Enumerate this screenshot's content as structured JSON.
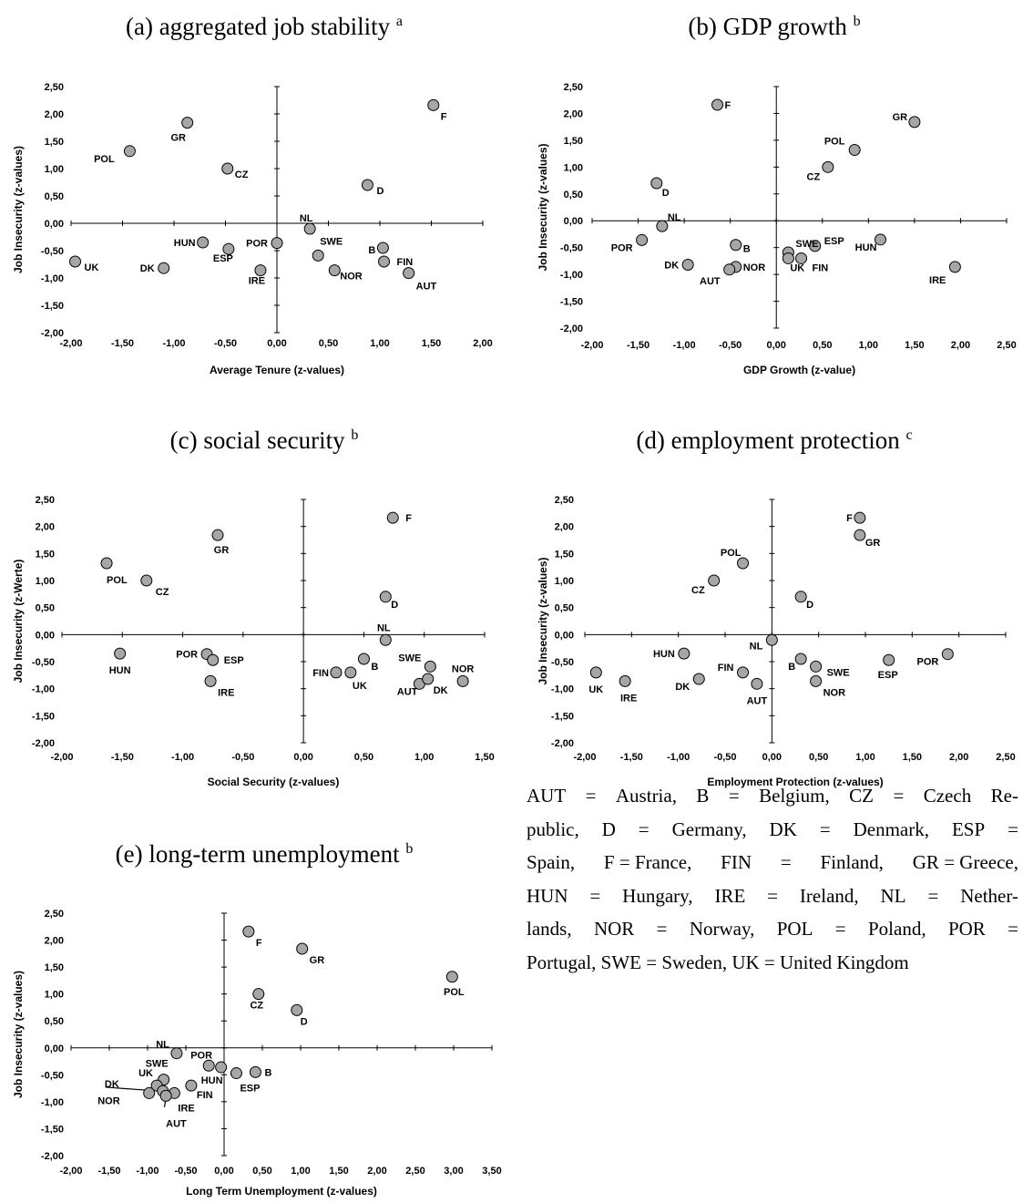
{
  "chart_data": [
    {
      "id": "a",
      "type": "scatter",
      "title": "(a) aggregated job stability",
      "title_sup": "a",
      "xlabel": "Average Tenure (z-values)",
      "ylabel": "Job Insecurity (z-values)",
      "xlim": [
        -2.0,
        2.0
      ],
      "ylim": [
        -2.0,
        2.5
      ],
      "xticks": [
        "-2,00",
        "-1,50",
        "-1,00",
        "-0,50",
        "0,00",
        "0,50",
        "1,00",
        "1,50",
        "2,00"
      ],
      "yticks": [
        "2,50",
        "2,00",
        "1,50",
        "1,00",
        "0,50",
        "0,00",
        "-0,50",
        "-1,00",
        "-1,50",
        "-2,00"
      ],
      "points": [
        {
          "label": "F",
          "x": 1.52,
          "y": 2.16
        },
        {
          "label": "GR",
          "x": -0.87,
          "y": 1.84
        },
        {
          "label": "POL",
          "x": -1.43,
          "y": 1.32
        },
        {
          "label": "CZ",
          "x": -0.48,
          "y": 1.0
        },
        {
          "label": "D",
          "x": 0.88,
          "y": 0.7
        },
        {
          "label": "NL",
          "x": 0.32,
          "y": -0.1
        },
        {
          "label": "HUN",
          "x": -0.72,
          "y": -0.35
        },
        {
          "label": "POR",
          "x": 0.0,
          "y": -0.36
        },
        {
          "label": "ESP",
          "x": -0.47,
          "y": -0.47
        },
        {
          "label": "B",
          "x": 1.03,
          "y": -0.45
        },
        {
          "label": "SWE",
          "x": 0.4,
          "y": -0.59
        },
        {
          "label": "UK",
          "x": -1.96,
          "y": -0.7
        },
        {
          "label": "FIN",
          "x": 1.04,
          "y": -0.7
        },
        {
          "label": "DK",
          "x": -1.1,
          "y": -0.82
        },
        {
          "label": "IRE",
          "x": -0.16,
          "y": -0.86
        },
        {
          "label": "NOR",
          "x": 0.56,
          "y": -0.86
        },
        {
          "label": "AUT",
          "x": 1.28,
          "y": -0.91
        }
      ]
    },
    {
      "id": "b",
      "type": "scatter",
      "title": "(b) GDP growth",
      "title_sup": "b",
      "xlabel": "GDP Growth (z-value)",
      "ylabel": "Job Insecurity (z-values)",
      "xlim": [
        -2.0,
        2.5
      ],
      "ylim": [
        -2.0,
        2.5
      ],
      "xticks": [
        "-2,00",
        "-1,50",
        "-1,00",
        "-0,50",
        "0,00",
        "0,50",
        "1,00",
        "1,50",
        "2,00",
        "2,50"
      ],
      "yticks": [
        "2,50",
        "2,00",
        "1,50",
        "1,00",
        "0,50",
        "0,00",
        "-0,50",
        "-1,00",
        "-1,50",
        "-2,00"
      ],
      "points": [
        {
          "label": "F",
          "x": -0.64,
          "y": 2.16
        },
        {
          "label": "GR",
          "x": 1.5,
          "y": 1.84
        },
        {
          "label": "POL",
          "x": 0.85,
          "y": 1.32
        },
        {
          "label": "CZ",
          "x": 0.56,
          "y": 1.0
        },
        {
          "label": "D",
          "x": -1.3,
          "y": 0.7
        },
        {
          "label": "NL",
          "x": -1.24,
          "y": -0.1
        },
        {
          "label": "POR",
          "x": -1.46,
          "y": -0.36
        },
        {
          "label": "B",
          "x": -0.44,
          "y": -0.45
        },
        {
          "label": "HUN",
          "x": 1.13,
          "y": -0.35
        },
        {
          "label": "ESP",
          "x": 0.42,
          "y": -0.47
        },
        {
          "label": "SWE",
          "x": 0.13,
          "y": -0.59
        },
        {
          "label": "FIN",
          "x": 0.27,
          "y": -0.7
        },
        {
          "label": "UK",
          "x": 0.13,
          "y": -0.7
        },
        {
          "label": "DK",
          "x": -0.96,
          "y": -0.82
        },
        {
          "label": "NOR",
          "x": -0.44,
          "y": -0.86
        },
        {
          "label": "AUT",
          "x": -0.51,
          "y": -0.91
        },
        {
          "label": "IRE",
          "x": 1.94,
          "y": -0.86
        }
      ]
    },
    {
      "id": "c",
      "type": "scatter",
      "title": "(c) social security",
      "title_sup": "b",
      "xlabel": "Social Security (z-values)",
      "ylabel": "Job Insecurity (z-Werte)",
      "xlim": [
        -2.0,
        1.5
      ],
      "ylim": [
        -2.0,
        2.5
      ],
      "xticks": [
        "-2,00",
        "-1,50",
        "-1,00",
        "-0,50",
        "0,00",
        "0,50",
        "1,00",
        "1,50"
      ],
      "yticks": [
        "2,50",
        "2,00",
        "1,50",
        "1,00",
        "0,50",
        "0,00",
        "-0,50",
        "-1,00",
        "-1,50",
        "-2,00"
      ],
      "points": [
        {
          "label": "F",
          "x": 0.74,
          "y": 2.16
        },
        {
          "label": "GR",
          "x": -0.71,
          "y": 1.84
        },
        {
          "label": "POL",
          "x": -1.63,
          "y": 1.32
        },
        {
          "label": "CZ",
          "x": -1.3,
          "y": 1.0
        },
        {
          "label": "D",
          "x": 0.68,
          "y": 0.7
        },
        {
          "label": "NL",
          "x": 0.68,
          "y": -0.1
        },
        {
          "label": "HUN",
          "x": -1.52,
          "y": -0.35
        },
        {
          "label": "POR",
          "x": -0.8,
          "y": -0.36
        },
        {
          "label": "ESP",
          "x": -0.75,
          "y": -0.47
        },
        {
          "label": "B",
          "x": 0.5,
          "y": -0.45
        },
        {
          "label": "SWE",
          "x": 1.05,
          "y": -0.59
        },
        {
          "label": "FIN",
          "x": 0.27,
          "y": -0.7
        },
        {
          "label": "UK",
          "x": 0.39,
          "y": -0.7
        },
        {
          "label": "NOR",
          "x": 1.32,
          "y": -0.86
        },
        {
          "label": "IRE",
          "x": -0.77,
          "y": -0.86
        },
        {
          "label": "AUT",
          "x": 0.96,
          "y": -0.91
        },
        {
          "label": "DK",
          "x": 1.03,
          "y": -0.82
        }
      ]
    },
    {
      "id": "d",
      "type": "scatter",
      "title": "(d) employment protection",
      "title_sup": "c",
      "xlabel": "Employment Protection (z-values)",
      "ylabel": "Job Insecurity (z-values)",
      "xlim": [
        -2.0,
        2.5
      ],
      "ylim": [
        -2.0,
        2.5
      ],
      "xticks": [
        "-2,00",
        "-1,50",
        "-1,00",
        "-0,50",
        "0,00",
        "0,50",
        "1,00",
        "1,50",
        "2,00",
        "2,50"
      ],
      "yticks": [
        "2,50",
        "2,00",
        "1,50",
        "1,00",
        "0,50",
        "0,00",
        "-0,50",
        "-1,00",
        "-1,50",
        "-2,00"
      ],
      "points": [
        {
          "label": "F",
          "x": 0.94,
          "y": 2.16
        },
        {
          "label": "GR",
          "x": 0.94,
          "y": 1.84
        },
        {
          "label": "POL",
          "x": -0.31,
          "y": 1.32
        },
        {
          "label": "CZ",
          "x": -0.62,
          "y": 1.0
        },
        {
          "label": "D",
          "x": 0.31,
          "y": 0.7
        },
        {
          "label": "NL",
          "x": 0.0,
          "y": -0.1
        },
        {
          "label": "HUN",
          "x": -0.94,
          "y": -0.35
        },
        {
          "label": "POR",
          "x": 1.88,
          "y": -0.36
        },
        {
          "label": "ESP",
          "x": 1.25,
          "y": -0.47
        },
        {
          "label": "B",
          "x": 0.31,
          "y": -0.45
        },
        {
          "label": "SWE",
          "x": 0.47,
          "y": -0.59
        },
        {
          "label": "FIN",
          "x": -0.31,
          "y": -0.7
        },
        {
          "label": "UK",
          "x": -1.88,
          "y": -0.7
        },
        {
          "label": "DK",
          "x": -0.78,
          "y": -0.82
        },
        {
          "label": "IRE",
          "x": -1.57,
          "y": -0.86
        },
        {
          "label": "NOR",
          "x": 0.47,
          "y": -0.86
        },
        {
          "label": "AUT",
          "x": -0.16,
          "y": -0.91
        }
      ]
    },
    {
      "id": "e",
      "type": "scatter",
      "title": "(e) long-term unemployment",
      "title_sup": "b",
      "xlabel": "Long Term Unemployment (z-values)",
      "ylabel": "Job Insecurity (z-values)",
      "xlim": [
        -2.0,
        3.5
      ],
      "ylim": [
        -2.0,
        2.5
      ],
      "xticks": [
        "-2,00",
        "-1,50",
        "-1,00",
        "-0,50",
        "0,00",
        "0,50",
        "1,00",
        "1,50",
        "2,00",
        "2,50",
        "3,00",
        "3,50"
      ],
      "yticks": [
        "2,50",
        "2,00",
        "1,50",
        "1,00",
        "0,50",
        "0,00",
        "-0,50",
        "-1,00",
        "-1,50",
        "-2,00"
      ],
      "points": [
        {
          "label": "F",
          "x": 0.32,
          "y": 2.16
        },
        {
          "label": "GR",
          "x": 1.02,
          "y": 1.84
        },
        {
          "label": "POL",
          "x": 2.98,
          "y": 1.32
        },
        {
          "label": "CZ",
          "x": 0.45,
          "y": 1.0
        },
        {
          "label": "D",
          "x": 0.95,
          "y": 0.7
        },
        {
          "label": "NL",
          "x": -0.62,
          "y": -0.1
        },
        {
          "label": "POR",
          "x": -0.2,
          "y": -0.33
        },
        {
          "label": "HUN",
          "x": -0.04,
          "y": -0.36
        },
        {
          "label": "ESP",
          "x": 0.16,
          "y": -0.47
        },
        {
          "label": "B",
          "x": 0.41,
          "y": -0.45
        },
        {
          "label": "SWE",
          "x": -0.79,
          "y": -0.59
        },
        {
          "label": "FIN",
          "x": -0.43,
          "y": -0.7
        },
        {
          "label": "UK",
          "x": -0.88,
          "y": -0.7
        },
        {
          "label": "DK",
          "x": -0.8,
          "y": -0.8
        },
        {
          "label": "IRE",
          "x": -0.65,
          "y": -0.84
        },
        {
          "label": "NOR",
          "x": -0.98,
          "y": -0.84
        },
        {
          "label": "AUT",
          "x": -0.76,
          "y": -0.89
        }
      ]
    }
  ],
  "legend_text": {
    "lines": [
      [
        "AUT",
        "=",
        "Austria,",
        "B",
        "=",
        "Belgium,",
        "CZ",
        "=",
        "Czech",
        "Re-"
      ],
      [
        "public,",
        "D",
        "=",
        "Germany,",
        "DK",
        "=",
        "Denmark,",
        "ESP",
        "="
      ],
      [
        "Spain,",
        "F = France,",
        "FIN",
        "=",
        "Finland,",
        "GR = Greece,"
      ],
      [
        "HUN",
        "=",
        "Hungary,",
        "IRE",
        "=",
        "Ireland,",
        "NL",
        "=",
        "Nether-"
      ],
      [
        "lands,",
        "NOR",
        "=",
        "Norway,",
        "POL",
        "=",
        "Poland,",
        "POR",
        "="
      ],
      [
        "Portugal, SWE = Sweden, UK = United Kingdom"
      ]
    ]
  }
}
